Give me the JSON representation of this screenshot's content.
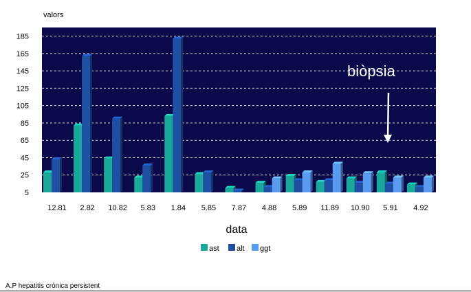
{
  "chart_data": {
    "type": "bar",
    "ylabel": "valors",
    "xlabel": "data",
    "ylim": [
      5,
      195
    ],
    "yticks": [
      5,
      25,
      45,
      65,
      85,
      105,
      125,
      145,
      165,
      185
    ],
    "grid": true,
    "legend_position": "bottom",
    "categories": [
      "12.81",
      "2.82",
      "10.82",
      "5.83",
      "1.84",
      "5.85",
      "7.87",
      "4.88",
      "5.89",
      "11.89",
      "10.90",
      "5.91",
      "4.92"
    ],
    "series": [
      {
        "name": "ast",
        "color": "#1aa89a",
        "values": [
          28,
          82,
          44,
          22,
          93,
          26,
          10,
          16,
          24,
          17,
          21,
          28,
          14
        ]
      },
      {
        "name": "alt",
        "color": "#1e4fa3",
        "values": [
          43,
          162,
          90,
          36,
          182,
          28,
          7,
          11,
          19,
          19,
          16,
          15,
          11
        ]
      },
      {
        "name": "ggt",
        "color": "#5a9bef",
        "values": [
          null,
          null,
          null,
          null,
          null,
          null,
          null,
          21,
          28,
          38,
          27,
          22,
          22
        ]
      }
    ],
    "annotation": {
      "text": "biòpsia",
      "category": "5.91"
    }
  },
  "caption": "A.P hepatitis  crònica persistent",
  "colors": {
    "plot_background": "#0a0a4a",
    "grid": "#d8d8d8"
  }
}
